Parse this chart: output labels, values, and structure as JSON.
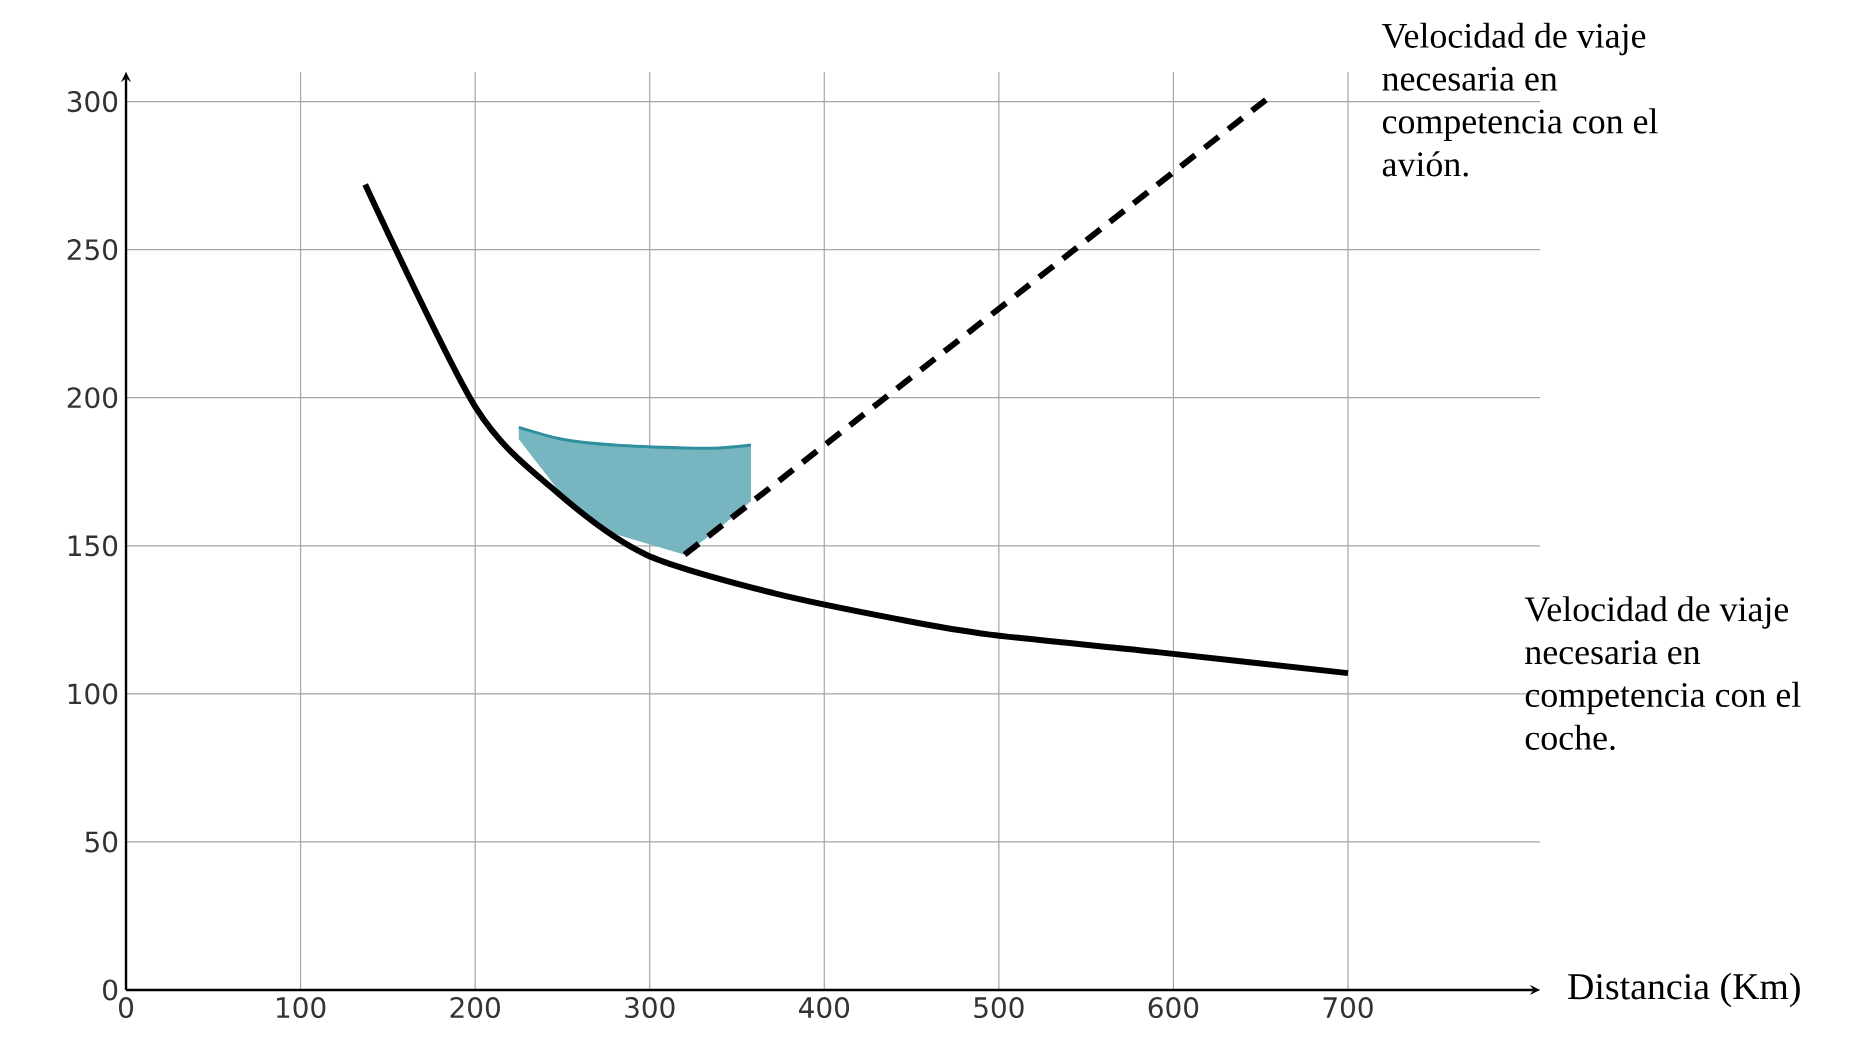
{
  "chart_data": {
    "type": "line",
    "xlabel": "Distancia (Km)",
    "xlim": [
      0,
      810
    ],
    "ylim": [
      0,
      310
    ],
    "xticks": [
      0,
      100,
      200,
      300,
      400,
      500,
      600,
      700
    ],
    "yticks": [
      0,
      50,
      100,
      150,
      200,
      250,
      300
    ],
    "grid": true,
    "series": [
      {
        "color": "#2f8f9f",
        "x": [
          225,
          250,
          280,
          320,
          340,
          358
        ],
        "values": [
          190,
          186,
          184,
          183,
          183,
          184
        ],
        "upper": [
          190,
          186,
          184,
          183,
          183,
          184
        ],
        "lower": [
          186,
          167,
          154,
          147,
          156,
          165
        ]
      },
      {
        "name": "Velocidad de viaje necesaria en competencia con el coche.",
        "color": "#000000",
        "line_style": "solid",
        "x": [
          137,
          200,
          247,
          298,
          371,
          444,
          495,
          592,
          700
        ],
        "values": [
          272,
          197,
          168,
          147,
          134,
          125,
          120,
          114,
          107
        ]
      },
      {
        "name": "Velocidad de viaje necesaria en competencia con el avión.",
        "color": "#000000",
        "line_style": "dashed",
        "x": [
          320,
          656
        ],
        "values": [
          147,
          302
        ]
      }
    ]
  }
}
